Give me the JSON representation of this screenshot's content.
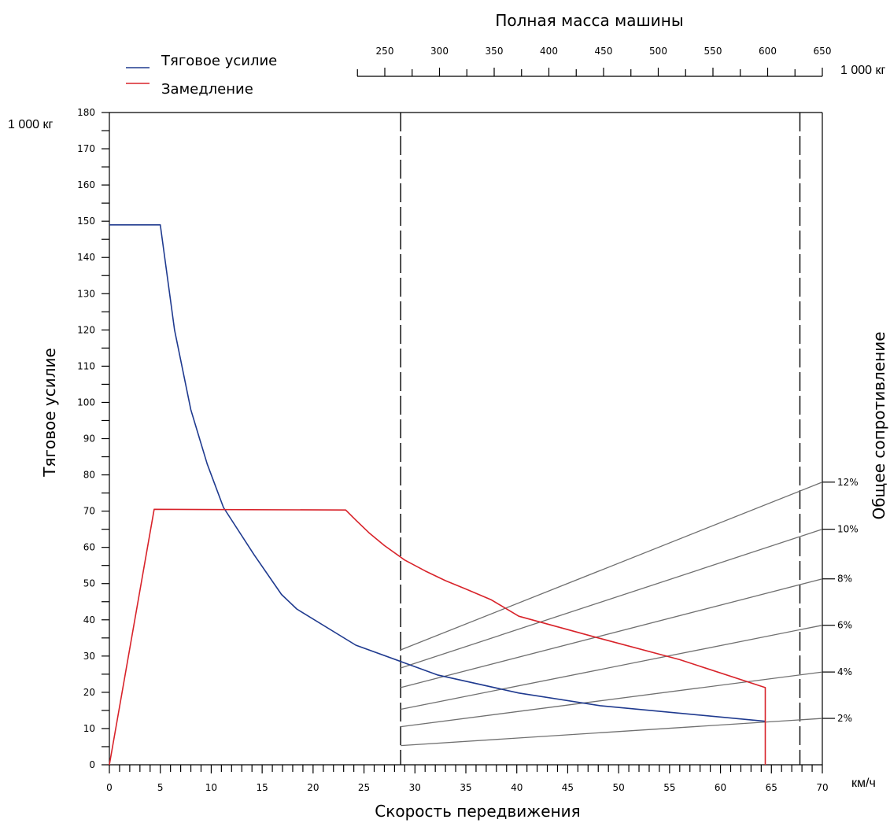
{
  "chart_data": {
    "type": "line",
    "top_axis_title": "Полная масса машины",
    "top_axis_unit": "1 000 кг",
    "top_axis_ticks": [
      250,
      300,
      350,
      400,
      450,
      500,
      550,
      600,
      650
    ],
    "left_axis_unit": "1 000 кг",
    "ylabel": "Тяговое усилие",
    "right_axis_title": "Общее сопротивление",
    "xlabel": "Скорость передвижения",
    "x_unit": "км/ч",
    "xlim": [
      0,
      70
    ],
    "ylim": [
      0,
      180
    ],
    "x_ticks": [
      0,
      5,
      10,
      15,
      20,
      25,
      30,
      35,
      40,
      45,
      50,
      55,
      60,
      65,
      70
    ],
    "y_ticks": [
      0,
      10,
      20,
      30,
      40,
      50,
      60,
      70,
      80,
      90,
      100,
      110,
      120,
      130,
      140,
      150,
      160,
      170,
      180
    ],
    "dashed_verticals_x": [
      28.6,
      67.8
    ],
    "series": [
      {
        "name": "Тяговое усилие",
        "color": "#1f3a8f",
        "points": [
          [
            0,
            149
          ],
          [
            5,
            149
          ],
          [
            6.4,
            120
          ],
          [
            8,
            98
          ],
          [
            9.6,
            83
          ],
          [
            11.2,
            71
          ],
          [
            14.2,
            58
          ],
          [
            16.9,
            47
          ],
          [
            18.4,
            43
          ],
          [
            24.2,
            33
          ],
          [
            28.6,
            28.5
          ],
          [
            32.2,
            24.8
          ],
          [
            40.2,
            19.8
          ],
          [
            48.2,
            16.3
          ],
          [
            64.4,
            12
          ]
        ]
      },
      {
        "name": "Замедление",
        "color": "#d8232a",
        "points": [
          [
            0,
            0
          ],
          [
            4.4,
            70.5
          ],
          [
            23.2,
            70.3
          ],
          [
            24.2,
            67.5
          ],
          [
            25.5,
            64
          ],
          [
            27,
            60.5
          ],
          [
            29,
            56.5
          ],
          [
            31,
            53.5
          ],
          [
            33,
            50.8
          ],
          [
            35,
            48.5
          ],
          [
            37.5,
            45.5
          ],
          [
            40.2,
            41
          ],
          [
            48,
            35
          ],
          [
            56,
            29
          ],
          [
            64.4,
            21.3
          ],
          [
            64.4,
            0
          ]
        ]
      }
    ],
    "resistance_lines": {
      "color": "#707070",
      "items": [
        {
          "label": "2%",
          "y_start": 5.3,
          "y_end": 12.8
        },
        {
          "label": "4%",
          "y_start": 10.5,
          "y_end": 25.6
        },
        {
          "label": "6%",
          "y_start": 15.3,
          "y_end": 38.5
        },
        {
          "label": "8%",
          "y_start": 21.3,
          "y_end": 51.3
        },
        {
          "label": "10%",
          "y_start": 26.7,
          "y_end": 65
        },
        {
          "label": "12%",
          "y_start": 31.7,
          "y_end": 78
        }
      ]
    }
  }
}
